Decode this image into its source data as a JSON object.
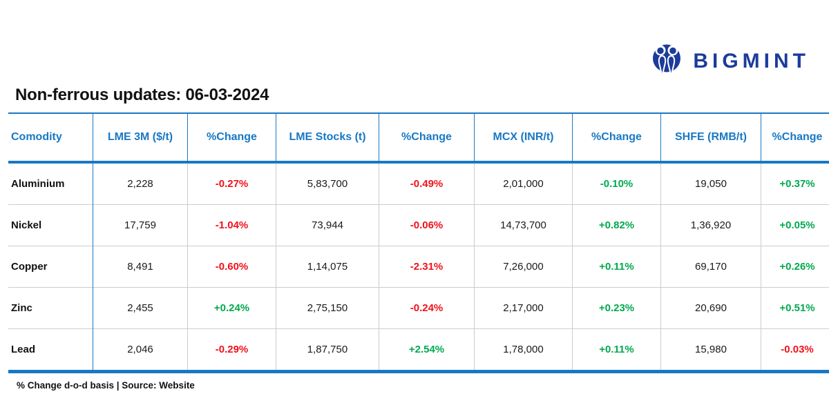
{
  "palette": {
    "blue": "#1878c4",
    "navy": "#1c3b9b",
    "red": "#f2101a",
    "green": "#00a94e",
    "grid_gray": "#cccccc"
  },
  "logo": {
    "brand": "BIGMINT",
    "icon": "bigmint-people-m-icon"
  },
  "title": "Non-ferrous updates: 06-03-2024",
  "footnote": "% Change d-o-d basis | Source: Website",
  "table": {
    "columns": [
      {
        "id": "commodity",
        "label": "Comodity",
        "width": 116
      },
      {
        "id": "lme-3m",
        "label": "LME 3M ($/t)",
        "width": 132
      },
      {
        "id": "lme-3m-change",
        "label": "%Change",
        "width": 123
      },
      {
        "id": "lme-stocks",
        "label": "LME Stocks (t)",
        "width": 144
      },
      {
        "id": "lme-stocks-change",
        "label": "%Change",
        "width": 133
      },
      {
        "id": "mcx",
        "label": "MCX (INR/t)",
        "width": 137
      },
      {
        "id": "mcx-change",
        "label": "%Change",
        "width": 123
      },
      {
        "id": "shfe",
        "label": "SHFE (RMB/t)",
        "width": 140
      },
      {
        "id": "shfe-change",
        "label": "%Change",
        "width": 100
      }
    ],
    "rows": [
      {
        "id": "aluminium",
        "cells": [
          {
            "text": "Aluminium",
            "kind": "label"
          },
          {
            "text": "2,228",
            "kind": "num"
          },
          {
            "text": "-0.27%",
            "kind": "chg",
            "color": "red"
          },
          {
            "text": "5,83,700",
            "kind": "num"
          },
          {
            "text": "-0.49%",
            "kind": "chg",
            "color": "red"
          },
          {
            "text": "2,01,000",
            "kind": "num"
          },
          {
            "text": "-0.10%",
            "kind": "chg",
            "color": "green"
          },
          {
            "text": "19,050",
            "kind": "num"
          },
          {
            "text": "+0.37%",
            "kind": "chg",
            "color": "green"
          }
        ]
      },
      {
        "id": "nickel",
        "cells": [
          {
            "text": "Nickel",
            "kind": "label"
          },
          {
            "text": "17,759",
            "kind": "num"
          },
          {
            "text": "-1.04%",
            "kind": "chg",
            "color": "red"
          },
          {
            "text": "73,944",
            "kind": "num"
          },
          {
            "text": "-0.06%",
            "kind": "chg",
            "color": "red"
          },
          {
            "text": "14,73,700",
            "kind": "num"
          },
          {
            "text": "+0.82%",
            "kind": "chg",
            "color": "green"
          },
          {
            "text": "1,36,920",
            "kind": "num"
          },
          {
            "text": "+0.05%",
            "kind": "chg",
            "color": "green"
          }
        ]
      },
      {
        "id": "copper",
        "cells": [
          {
            "text": "Copper",
            "kind": "label"
          },
          {
            "text": "8,491",
            "kind": "num"
          },
          {
            "text": "-0.60%",
            "kind": "chg",
            "color": "red"
          },
          {
            "text": "1,14,075",
            "kind": "num"
          },
          {
            "text": "-2.31%",
            "kind": "chg",
            "color": "red"
          },
          {
            "text": "7,26,000",
            "kind": "num"
          },
          {
            "text": "+0.11%",
            "kind": "chg",
            "color": "green"
          },
          {
            "text": "69,170",
            "kind": "num"
          },
          {
            "text": "+0.26%",
            "kind": "chg",
            "color": "green"
          }
        ]
      },
      {
        "id": "zinc",
        "cells": [
          {
            "text": "Zinc",
            "kind": "label"
          },
          {
            "text": "2,455",
            "kind": "num"
          },
          {
            "text": "+0.24%",
            "kind": "chg",
            "color": "green"
          },
          {
            "text": "2,75,150",
            "kind": "num"
          },
          {
            "text": "-0.24%",
            "kind": "chg",
            "color": "red"
          },
          {
            "text": "2,17,000",
            "kind": "num"
          },
          {
            "text": "+0.23%",
            "kind": "chg",
            "color": "green"
          },
          {
            "text": "20,690",
            "kind": "num"
          },
          {
            "text": "+0.51%",
            "kind": "chg",
            "color": "green"
          }
        ]
      },
      {
        "id": "lead",
        "cells": [
          {
            "text": "Lead",
            "kind": "label"
          },
          {
            "text": "2,046",
            "kind": "num"
          },
          {
            "text": "-0.29%",
            "kind": "chg",
            "color": "red"
          },
          {
            "text": "1,87,750",
            "kind": "num"
          },
          {
            "text": "+2.54%",
            "kind": "chg",
            "color": "green"
          },
          {
            "text": "1,78,000",
            "kind": "num"
          },
          {
            "text": "+0.11%",
            "kind": "chg",
            "color": "green"
          },
          {
            "text": "15,980",
            "kind": "num"
          },
          {
            "text": "-0.03%",
            "kind": "chg",
            "color": "red"
          }
        ]
      }
    ]
  },
  "chart_data": {
    "type": "table",
    "title": "Non-ferrous updates: 06-03-2024",
    "columns": [
      "Comodity",
      "LME 3M ($/t)",
      "%Change",
      "LME Stocks (t)",
      "%Change",
      "MCX (INR/t)",
      "%Change",
      "SHFE (RMB/t)",
      "%Change"
    ],
    "rows": [
      [
        "Aluminium",
        "2,228",
        "-0.27%",
        "5,83,700",
        "-0.49%",
        "2,01,000",
        "-0.10%",
        "19,050",
        "+0.37%"
      ],
      [
        "Nickel",
        "17,759",
        "-1.04%",
        "73,944",
        "-0.06%",
        "14,73,700",
        "+0.82%",
        "1,36,920",
        "+0.05%"
      ],
      [
        "Copper",
        "8,491",
        "-0.60%",
        "1,14,075",
        "-2.31%",
        "7,26,000",
        "+0.11%",
        "69,170",
        "+0.26%"
      ],
      [
        "Zinc",
        "2,455",
        "+0.24%",
        "2,75,150",
        "-0.24%",
        "2,17,000",
        "+0.23%",
        "20,690",
        "+0.51%"
      ],
      [
        "Lead",
        "2,046",
        "-0.29%",
        "1,87,750",
        "+2.54%",
        "1,78,000",
        "+0.11%",
        "15,980",
        "-0.03%"
      ]
    ],
    "note": "% Change d-o-d basis | Source: Website"
  }
}
